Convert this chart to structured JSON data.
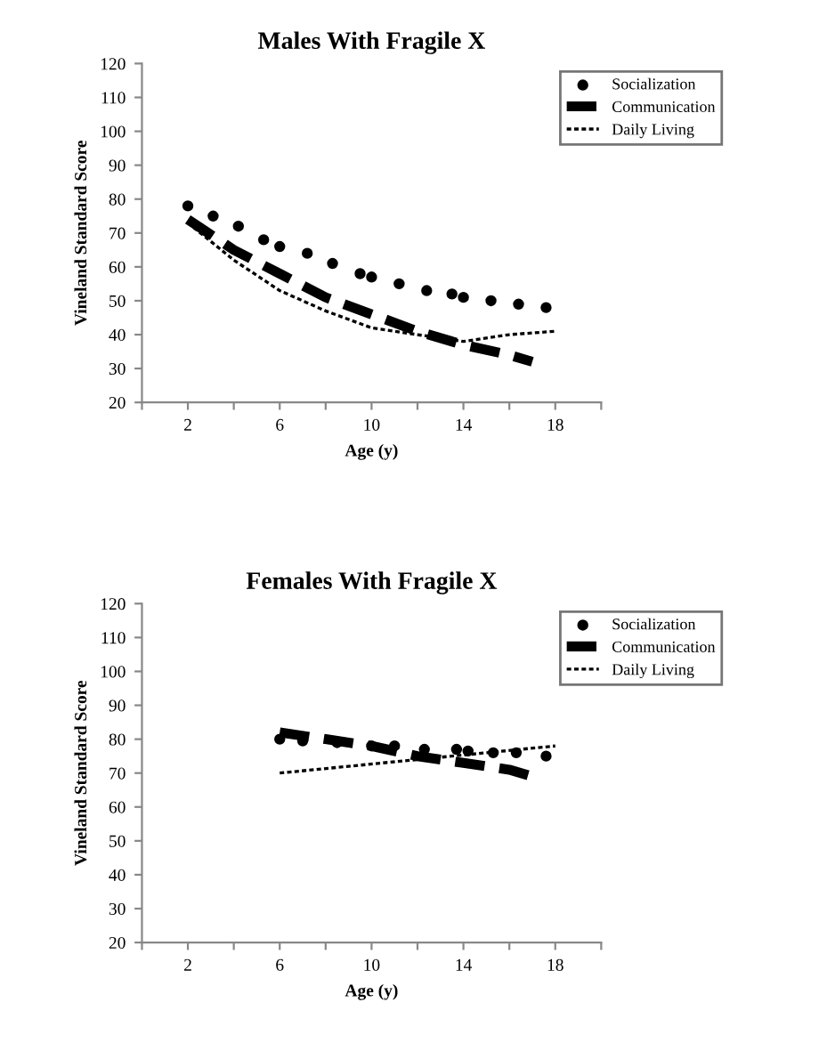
{
  "chart_data": [
    {
      "type": "line",
      "title": "Males With Fragile X",
      "xlabel": "Age (y)",
      "ylabel": "Vineland Standard Score",
      "xlim": [
        0,
        20
      ],
      "ylim": [
        20,
        120
      ],
      "xticks": [
        {
          "value": 0,
          "label": null
        },
        2,
        {
          "value": 4,
          "label": null
        },
        6,
        {
          "value": 8,
          "label": null
        },
        10,
        {
          "value": 12,
          "label": null
        },
        14,
        {
          "value": 16,
          "label": null
        },
        18,
        {
          "value": 20,
          "label": null
        }
      ],
      "yticks": [
        20,
        30,
        40,
        50,
        60,
        70,
        80,
        90,
        100,
        110,
        120
      ],
      "legend": "top right",
      "grid": false,
      "series": [
        {
          "name": "Socialization",
          "color": "#000000",
          "type": "scatter",
          "marker": "circle",
          "x": [
            2,
            3.1,
            4.2,
            5.3,
            6,
            7.2,
            8.3,
            9.5,
            10,
            11.2,
            12.4,
            13.5,
            14,
            15.2,
            16.4,
            17.6
          ],
          "values": [
            78,
            75,
            72,
            68,
            66,
            64,
            61,
            58,
            57,
            55,
            53,
            52,
            51,
            50,
            49,
            48
          ]
        },
        {
          "name": "Communication",
          "color": "#000000",
          "line_style": "dashed",
          "x": [
            2,
            4,
            6,
            8,
            10,
            12,
            14,
            16,
            17
          ],
          "values": [
            74,
            65,
            58,
            51,
            46,
            41,
            37,
            34,
            32
          ]
        },
        {
          "name": "Daily Living",
          "color": "#000000",
          "line_style": "dotted",
          "x": [
            2,
            4,
            6,
            8,
            10,
            12,
            14,
            16,
            18
          ],
          "values": [
            73,
            62,
            53,
            47,
            42,
            40,
            38,
            40,
            41
          ]
        }
      ]
    },
    {
      "type": "line",
      "title": "Females With Fragile X",
      "xlabel": "Age (y)",
      "ylabel": "Vineland Standard Score",
      "xlim": [
        0,
        20
      ],
      "ylim": [
        20,
        120
      ],
      "xticks": [
        {
          "value": 0,
          "label": null
        },
        2,
        {
          "value": 4,
          "label": null
        },
        6,
        {
          "value": 8,
          "label": null
        },
        10,
        {
          "value": 12,
          "label": null
        },
        14,
        {
          "value": 16,
          "label": null
        },
        18,
        {
          "value": 20,
          "label": null
        }
      ],
      "yticks": [
        20,
        30,
        40,
        50,
        60,
        70,
        80,
        90,
        100,
        110,
        120
      ],
      "legend": "top right",
      "grid": false,
      "series": [
        {
          "name": "Socialization",
          "color": "#000000",
          "type": "scatter",
          "marker": "circle",
          "x": [
            6,
            7,
            8.5,
            10,
            11,
            12.3,
            13.7,
            14.2,
            15.3,
            16.3,
            17.6
          ],
          "values": [
            80,
            79.5,
            79,
            78,
            78,
            77,
            77,
            76.5,
            76,
            76,
            75
          ]
        },
        {
          "name": "Communication",
          "color": "#000000",
          "line_style": "dashed",
          "x": [
            6,
            8,
            10,
            12,
            14,
            16,
            17
          ],
          "values": [
            82,
            80,
            78,
            75,
            73,
            71,
            69
          ]
        },
        {
          "name": "Daily Living",
          "color": "#000000",
          "line_style": "dotted",
          "x": [
            6,
            18
          ],
          "values": [
            70,
            78
          ]
        }
      ]
    }
  ]
}
